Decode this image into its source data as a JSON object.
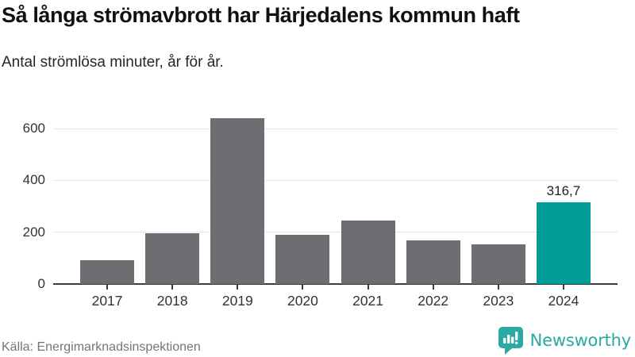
{
  "header": {
    "title": "Så långa strömavbrott har Härjedalens kommun haft",
    "subtitle": "Antal strömlösa minuter, år för år."
  },
  "chart_data": {
    "type": "bar",
    "title": "Så långa strömavbrott har Härjedalens kommun haft",
    "subtitle": "Antal strömlösa minuter, år för år.",
    "categories": [
      "2017",
      "2018",
      "2019",
      "2020",
      "2021",
      "2022",
      "2023",
      "2024"
    ],
    "values": [
      93,
      196,
      639,
      191,
      246,
      168,
      154,
      316.7
    ],
    "highlight_index": 7,
    "highlight_label": "316,7",
    "xlabel": "",
    "ylabel": "",
    "yticks": [
      0,
      200,
      400,
      600
    ],
    "ylim": [
      0,
      683
    ],
    "grid": "horizontal",
    "legend": "none",
    "bar_color": "#6d6d72",
    "highlight_color": "#009e96",
    "gridline_color": "#e4e4e4",
    "axis_color": "#3c3c40"
  },
  "footer": {
    "source": "Källa: Energimarknadsinspektionen",
    "brand": "Newsworthy",
    "brand_color": "#2ba9a2",
    "logo_icon": "speech-bubble-bar-chart"
  }
}
